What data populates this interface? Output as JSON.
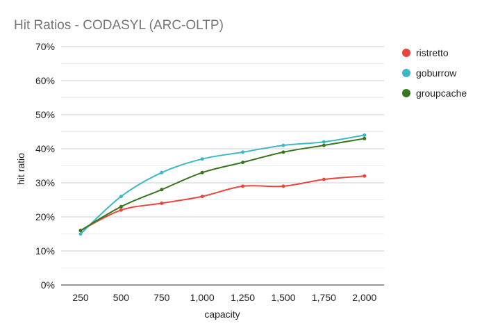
{
  "chart_data": {
    "type": "line",
    "title": "Hit Ratios - CODASYL (ARC-OLTP)",
    "xlabel": "capacity",
    "ylabel": "hit ratio",
    "categories": [
      "250",
      "500",
      "750",
      "1,000",
      "1,250",
      "1,500",
      "1,750",
      "2,000"
    ],
    "y_ticks": [
      "0%",
      "10%",
      "20%",
      "30%",
      "40%",
      "50%",
      "60%",
      "70%"
    ],
    "ylim": [
      0,
      70
    ],
    "grid": true,
    "legend_position": "right",
    "series": [
      {
        "name": "ristretto",
        "color": "#e8453c",
        "values": [
          16,
          22,
          24,
          26,
          29,
          29,
          31,
          32
        ]
      },
      {
        "name": "goburrow",
        "color": "#3db8c5",
        "values": [
          15,
          26,
          33,
          37,
          39,
          41,
          42,
          44
        ]
      },
      {
        "name": "groupcache",
        "color": "#38761d",
        "values": [
          16,
          23,
          28,
          33,
          36,
          39,
          41,
          43
        ]
      }
    ]
  }
}
